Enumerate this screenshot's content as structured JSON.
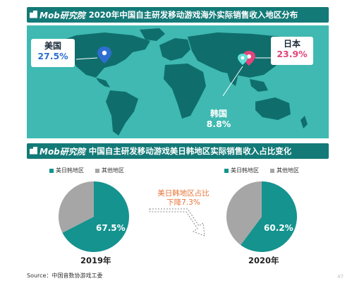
{
  "top_banner": {
    "brand": "Mob研究院",
    "title": "2020年中国自主研发移动游戏海外实际销售收入地区分布"
  },
  "mid_banner": {
    "brand": "Mob研究院",
    "title": "中国自主研发移动游戏美日韩地区实际销售收入占比变化"
  },
  "regions": [
    {
      "name": "美国",
      "value": "27.5%"
    },
    {
      "name": "日本",
      "value": "23.9%"
    },
    {
      "name": "韩国",
      "value": "8.8%"
    }
  ],
  "legend": {
    "a": "美日韩地区",
    "b": "其他地区"
  },
  "note": {
    "line1": "美日韩地区占比",
    "line2": "下降7.3%"
  },
  "footer": {
    "source": "Source：中国音数协游戏工委",
    "page": "47"
  },
  "colors": {
    "teal": "#14938f",
    "grey": "#a6a6a6",
    "map_bg": "#3fb9b2",
    "land": "#0f6e6c",
    "us": "#2e6ed0",
    "jp": "#e0457b"
  },
  "chart_data": [
    {
      "type": "pie",
      "title": "2019年",
      "categories": [
        "美日韩地区",
        "其他地区"
      ],
      "values": [
        67.5,
        32.5
      ],
      "labels": [
        "67.5%",
        ""
      ]
    },
    {
      "type": "pie",
      "title": "2020年",
      "categories": [
        "美日韩地区",
        "其他地区"
      ],
      "values": [
        60.2,
        39.8
      ],
      "labels": [
        "60.2%",
        ""
      ]
    }
  ]
}
